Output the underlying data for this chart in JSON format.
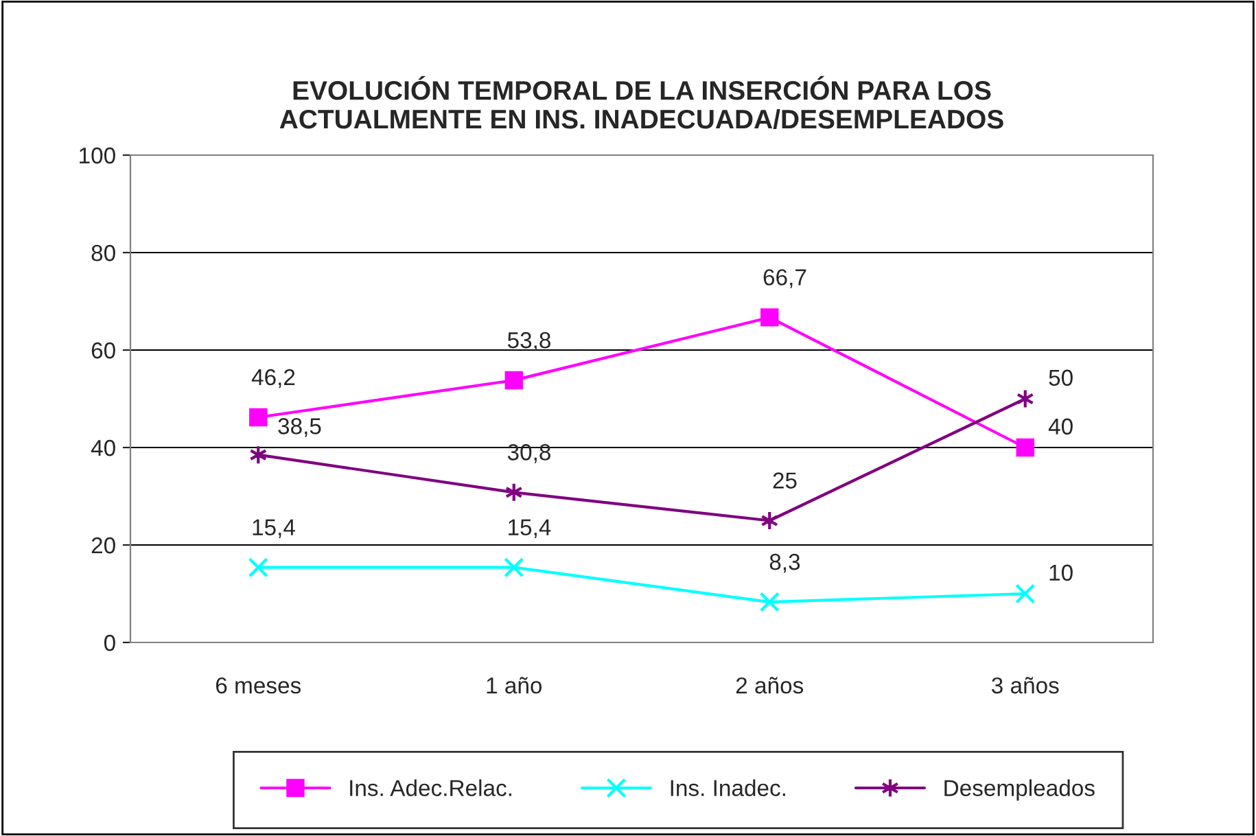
{
  "chart_data": {
    "type": "line",
    "title": "EVOLUCIÓN TEMPORAL DE LA INSERCIÓN PARA LOS\nACTUALMENTE EN INS. INADECUADA/DESEMPLEADOS",
    "categories": [
      "6 meses",
      "1 año",
      "2 años",
      "3 años"
    ],
    "series": [
      {
        "name": "Ins. Adec.Relac.",
        "color": "#ff00ff",
        "marker": "square",
        "values": [
          46.2,
          53.8,
          66.7,
          40
        ],
        "value_labels": [
          "46,2",
          "53,8",
          "66,7",
          "40"
        ]
      },
      {
        "name": "Ins. Inadec.",
        "color": "#00ffff",
        "marker": "cross",
        "values": [
          15.4,
          15.4,
          8.3,
          10
        ],
        "value_labels": [
          "15,4",
          "15,4",
          "8,3",
          "10"
        ]
      },
      {
        "name": "Desempleados",
        "color": "#800080",
        "marker": "cross",
        "values": [
          38.5,
          30.8,
          25,
          50
        ],
        "value_labels": [
          "38,5",
          "30,8",
          "25",
          "50"
        ]
      }
    ],
    "ylim": [
      0,
      100
    ],
    "yticks": [
      0,
      20,
      40,
      60,
      80,
      100
    ],
    "grid": "y",
    "legend": "bottom"
  }
}
